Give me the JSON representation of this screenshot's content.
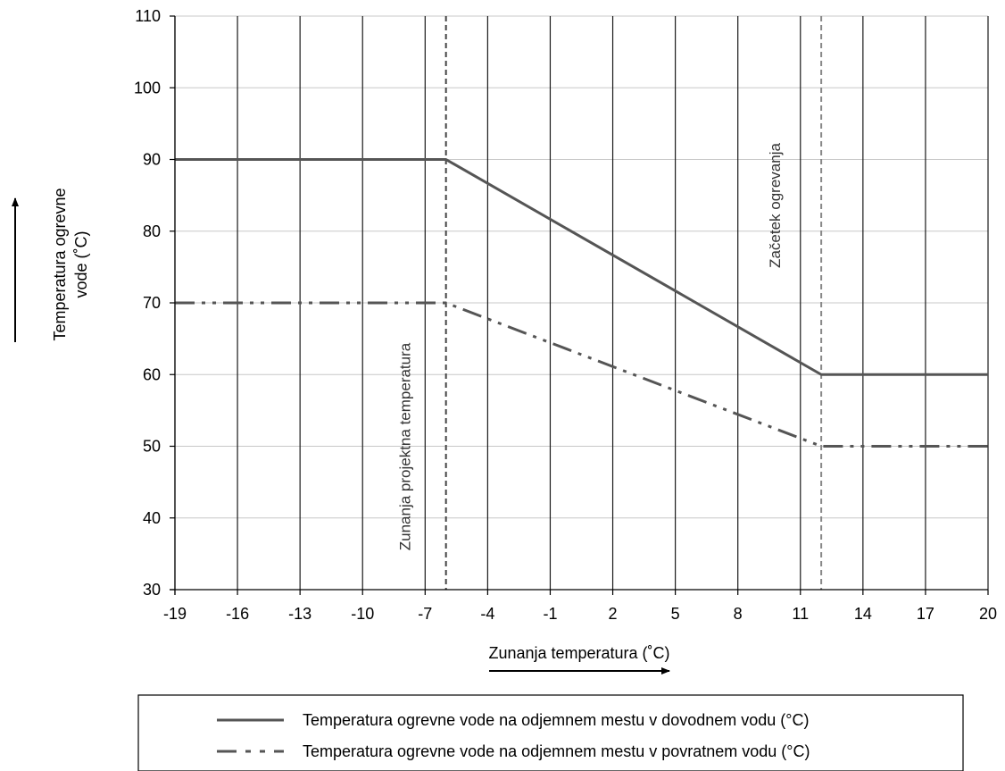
{
  "chart_data": {
    "type": "line",
    "x_ticks": [
      -19,
      -16,
      -13,
      -10,
      -7,
      -4,
      -1,
      2,
      5,
      8,
      11,
      14,
      17,
      20
    ],
    "xlim": [
      -19,
      20
    ],
    "y_ticks": [
      30,
      40,
      50,
      60,
      70,
      80,
      90,
      100,
      110
    ],
    "ylim": [
      30,
      110
    ],
    "xlabel": "Zunanja temperatura (˚C)",
    "ylabel_line1": "Temperatura ogrevne",
    "ylabel_line2": "vode (˚C)",
    "grid": "vertical-and-horizontal",
    "legend_position": "bottom",
    "series": [
      {
        "name": "Temperatura ogrevne vode na odjemnem mestu v dovodnem vodu (°C)",
        "line_style": "solid",
        "color": "#555555",
        "x": [
          -19,
          -6,
          12,
          20
        ],
        "y": [
          90,
          90,
          60,
          60
        ]
      },
      {
        "name": "Temperatura ogrevne vode na odjemnem mestu v povratnem vodu (°C)",
        "line_style": "dash-dot-dot",
        "color": "#555555",
        "x": [
          -19,
          -6,
          12,
          20
        ],
        "y": [
          70,
          70,
          50,
          50
        ]
      }
    ],
    "reference_lines": [
      {
        "x": -6,
        "label": "Zunanja projektna   temperatura",
        "color": "#444444"
      },
      {
        "x": 12,
        "label": "Začetek ogrevanja",
        "color": "#888888"
      }
    ]
  }
}
